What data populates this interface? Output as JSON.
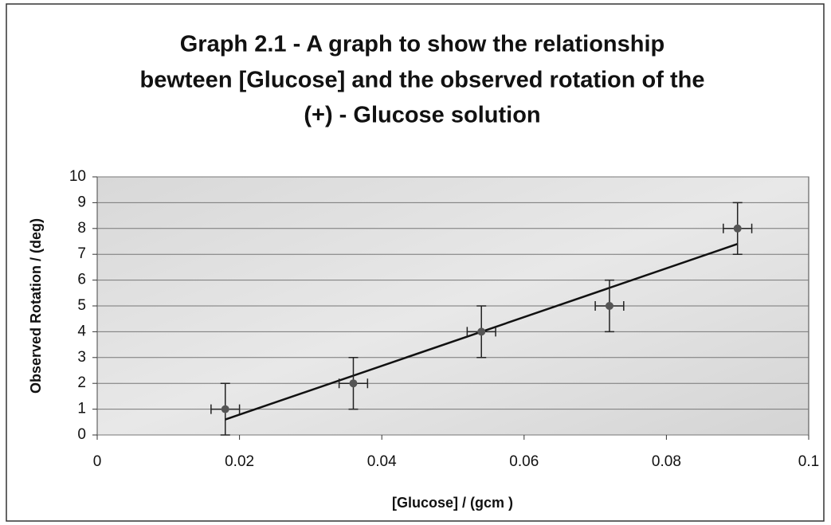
{
  "chart_data": {
    "type": "scatter",
    "title": [
      "Graph 2.1 - A graph to show the relationship",
      "bewteen [Glucose] and the observed rotation of the",
      "(+) - Glucose solution"
    ],
    "x_label": "[Glucose] / (gcm )",
    "y_label": "Observed Rotation / (deg)",
    "x": [
      0.018,
      0.036,
      0.054,
      0.072,
      0.09
    ],
    "values": [
      1,
      2,
      4,
      5,
      8
    ],
    "y_error": [
      1,
      1,
      1,
      1,
      1
    ],
    "x_error": [
      0.002,
      0.002,
      0.002,
      0.002,
      0.002
    ],
    "color": "#555555",
    "trendline": "linear",
    "xlim": [
      0,
      0.1
    ],
    "xticks": [
      0,
      0.02,
      0.04,
      0.06,
      0.08,
      0.1
    ],
    "ylim": [
      0,
      10
    ],
    "yticks": [
      0,
      1,
      2,
      3,
      4,
      5,
      6,
      7,
      8,
      9,
      10
    ],
    "grid": true
  }
}
